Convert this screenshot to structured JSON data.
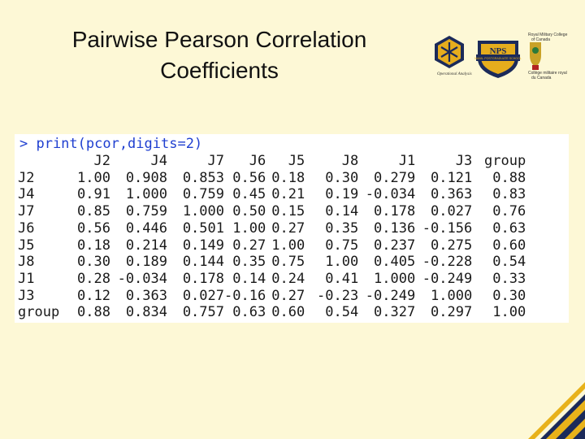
{
  "slide": {
    "title_line1": "Pairwise Pearson Correlation",
    "title_line2": "Coefficients"
  },
  "logos": {
    "left_caption": "Operational Analysis",
    "center_text": "NPS",
    "center_band": "NAVAL POSTGRADUATE SCHOOL",
    "right_line1": "Royal Military College",
    "right_line2": "of Canada",
    "right_line3": "Collège militaire royal",
    "right_line4": "du Canada"
  },
  "console": {
    "command": "> print(pcor,digits=2)",
    "columns": [
      "J2",
      "J4",
      "J7",
      "J6",
      "J5",
      "J8",
      "J1",
      "J3",
      "group"
    ],
    "rows": [
      {
        "name": "J2",
        "values": [
          "1.00",
          "0.908",
          "0.853",
          "0.56",
          "0.18",
          "0.30",
          "0.279",
          "0.121",
          "0.88"
        ]
      },
      {
        "name": "J4",
        "values": [
          "0.91",
          "1.000",
          "0.759",
          "0.45",
          "0.21",
          "0.19",
          "-0.034",
          "0.363",
          "0.83"
        ]
      },
      {
        "name": "J7",
        "values": [
          "0.85",
          "0.759",
          "1.000",
          "0.50",
          "0.15",
          "0.14",
          "0.178",
          "0.027",
          "0.76"
        ]
      },
      {
        "name": "J6",
        "values": [
          "0.56",
          "0.446",
          "0.501",
          "1.00",
          "0.27",
          "0.35",
          "0.136",
          "-0.156",
          "0.63"
        ]
      },
      {
        "name": "J5",
        "values": [
          "0.18",
          "0.214",
          "0.149",
          "0.27",
          "1.00",
          "0.75",
          "0.237",
          "0.275",
          "0.60"
        ]
      },
      {
        "name": "J8",
        "values": [
          "0.30",
          "0.189",
          "0.144",
          "0.35",
          "0.75",
          "1.00",
          "0.405",
          "-0.228",
          "0.54"
        ]
      },
      {
        "name": "J1",
        "values": [
          "0.28",
          "-0.034",
          "0.178",
          "0.14",
          "0.24",
          "0.41",
          "1.000",
          "-0.249",
          "0.33"
        ]
      },
      {
        "name": "J3",
        "values": [
          "0.12",
          "0.363",
          "0.027",
          "-0.16",
          "0.27",
          "-0.23",
          "-0.249",
          "1.000",
          "0.30"
        ]
      },
      {
        "name": "group",
        "values": [
          "0.88",
          "0.834",
          "0.757",
          "0.63",
          "0.60",
          "0.54",
          "0.327",
          "0.297",
          "1.00"
        ]
      }
    ]
  },
  "colors": {
    "background": "#fdf8d6",
    "command_text": "#1f3fd0",
    "corner_navy": "#1b2a5a",
    "corner_gold": "#e8b21a"
  }
}
